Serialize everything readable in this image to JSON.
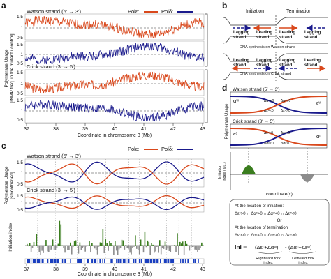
{
  "panel_letters": {
    "a": "a",
    "b": "b",
    "c": "c",
    "d": "d"
  },
  "colors": {
    "pol_epsilon": "#d9481c",
    "pol_delta": "#1a1a8c",
    "green": "#3a7d1e",
    "gray": "#8c8c8c",
    "dark": "#333333"
  },
  "panel_a": {
    "legend_eps": "Polε:",
    "legend_delta": "Polδ:",
    "watson_label": "Watson strand (5′ → 3′)",
    "crick_label": "Crick strand (3′ → 5′)",
    "ylabel_line1": "Polymerase Usage",
    "ylabel_line2": "[rNMP freq. in the mutant / control]",
    "ytick_hi": "1.5",
    "ytick_mid": "1",
    "ytick_lo": "0.5",
    "xticks": [
      "37",
      "38",
      "39",
      "40",
      "41",
      "42",
      "43"
    ],
    "xlabel": "Coordinate in chromosome 3 (Mb)"
  },
  "panel_b": {
    "initiation": "Initiation",
    "termination": "Termination",
    "lagging_strand_l1": "Lagging",
    "lagging_strand_l2": "strand",
    "leading_strand_l1": "Leading",
    "leading_strand_l2": "strand",
    "caption_watson": "DNA synthesis on Watson strand",
    "caption_crick": "DNA synthesis on Crick strand"
  },
  "panel_c": {
    "legend_eps": "Polε:",
    "legend_delta": "Polδ:",
    "watson_label": "Watson strand (5′ → 3′)",
    "crick_label": "Crick strand (3′ → 5′)",
    "ylabel_top_l1": "Polymerase Usage",
    "ylabel_top_l2": "[smoothened]",
    "ylabel_bottom": "Initiation index",
    "ytick_hi": "1.5",
    "ytick_mid": "1",
    "ytick_lo": "0.5",
    "xticks": [
      "37",
      "38",
      "39",
      "40",
      "41",
      "42",
      "43"
    ],
    "xlabel": "Coordinate in chromosome 3 (Mb)"
  },
  "panel_d": {
    "watson_label": "Watson strand (5′ → 3′)",
    "crick_label": "Crick strand (3′ → 5′)",
    "ylabel": "Polymerase Usage",
    "init_ylabel_l1": "Initiation",
    "init_ylabel_l2": "index (a.u.)",
    "xlabel": "coordinate(x)",
    "alpha_w": "αʷ",
    "eps_w": "εʷ",
    "alpha_c": "αᶜ",
    "eps_c": "εᶜ",
    "delta_w_a": "Δαʷ>0",
    "delta_w_b": "Δαʷ<0",
    "delta_w_c": "Δεʷ<0",
    "delta_w_d": "Δεʷ>0",
    "delta_c_a": "Δεᶜ>0",
    "delta_c_b": "Δαᶜ<0",
    "delta_c_c": "Δαᶜ>0",
    "delta_c_d": "Δεᶜ<0",
    "box_l1": "At the location of initiation:",
    "box_l2": "Δεᶜ>0 ∩ Δαᶜ>0 ∩ Δαʷ<0 ∩ Δεʷ<0",
    "box_l3": "Or",
    "box_l4": "At the location of termination",
    "box_l5": "Δεᶜ<0 ∩ Δαᶜ<0 ∩ Δαʷ>0 ∩ Δεʷ>0",
    "ini_formula_a": "Ini = ",
    "ini_formula_b": "(Δεᶜ+Δαʷ)",
    "ini_formula_c": "-",
    "ini_formula_d": "(Δαᶜ+Δεʷ)",
    "rightward_l1": "Rightward fork",
    "rightward_l2": "index",
    "leftward_l1": "Leftward fork",
    "leftward_l2": "index"
  }
}
